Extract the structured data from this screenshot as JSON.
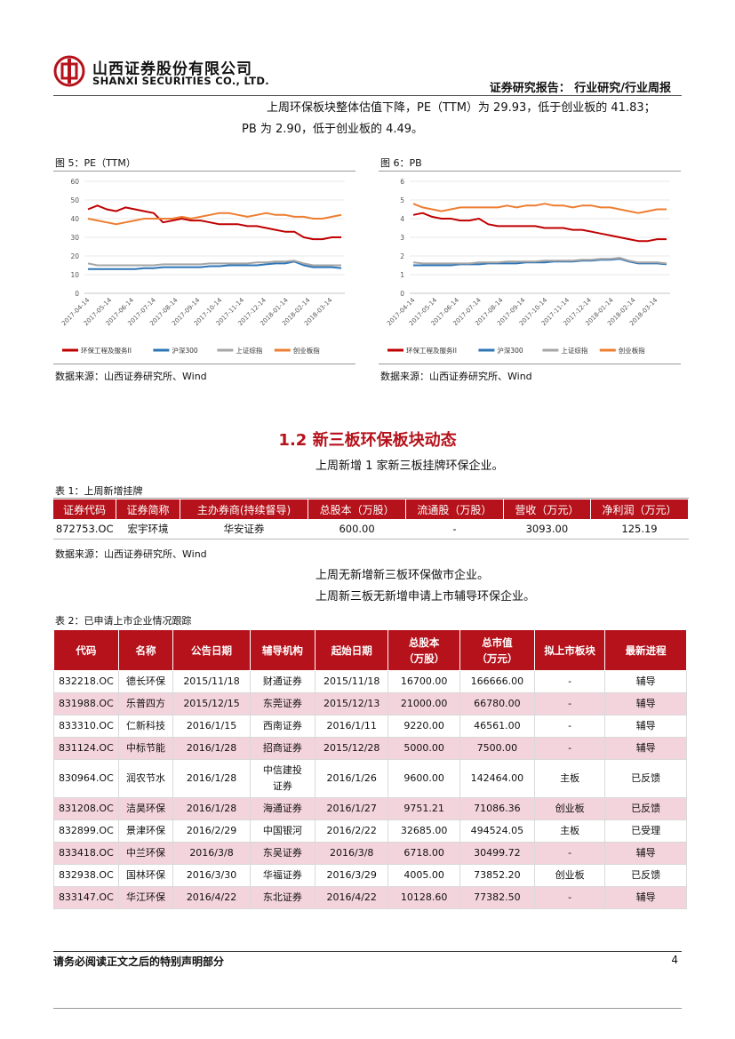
{
  "header": {
    "company_cn": "山西证券股份有限公司",
    "company_en": "SHANXI SECURITIES CO., LTD.",
    "report_type": "证券研究报告：  行业研究/行业周报"
  },
  "intro": {
    "line1": "上周环保板块整体估值下降，PE（TTM）为 29.93，低于创业板的 41.83；",
    "line2": "PB 为 2.90，低于创业板的 4.49。"
  },
  "figure5": {
    "title": "图 5：PE（TTM）",
    "source": "数据来源：山西证券研究所、Wind"
  },
  "figure6": {
    "title": "图 6：PB",
    "source": "数据来源：山西证券研究所、Wind"
  },
  "chart_data": [
    {
      "type": "line",
      "title": "",
      "ylim": [
        0,
        60
      ],
      "yticks": [
        "0",
        "10",
        "20",
        "30",
        "40",
        "50",
        "60"
      ],
      "xticks": [
        "2017-04-14",
        "2017-05-14",
        "2017-06-14",
        "2017-07-14",
        "2017-08-14",
        "2017-09-14",
        "2017-10-14",
        "2017-11-14",
        "2017-12-14",
        "2018-01-14",
        "2018-02-14",
        "2018-03-14"
      ],
      "grid": true,
      "legend_position": "bottom",
      "series": [
        {
          "name": "环保工程及服务II",
          "color": "#c00000",
          "values": [
            45,
            47,
            45,
            44,
            46,
            45,
            44,
            43,
            38,
            39,
            40,
            39,
            39,
            38,
            37,
            37,
            37,
            36,
            36,
            35,
            34,
            33,
            33,
            30,
            29,
            29,
            30,
            30
          ]
        },
        {
          "name": "沪深300",
          "color": "#2e75b6",
          "values": [
            13,
            13,
            13,
            13,
            13,
            13,
            13.5,
            13.5,
            14,
            14,
            14,
            14,
            14,
            14.5,
            14.5,
            15,
            15,
            15,
            15,
            15.5,
            16,
            16,
            17,
            15,
            14,
            14,
            14,
            13.5
          ]
        },
        {
          "name": "上证综指",
          "color": "#a6a6a6",
          "values": [
            16,
            15,
            15,
            15,
            15,
            15,
            15,
            15,
            15.5,
            15.5,
            15.5,
            15.5,
            15.5,
            16,
            16,
            16,
            16,
            16,
            16.5,
            16.5,
            17,
            17,
            17.5,
            16,
            15,
            15,
            15,
            15
          ]
        },
        {
          "name": "创业板指",
          "color": "#ed7d31",
          "values": [
            40,
            39,
            38,
            37,
            38,
            39,
            40,
            40,
            40,
            40,
            41,
            40,
            41,
            42,
            43,
            43,
            42,
            41,
            42,
            43,
            42,
            42,
            41,
            41,
            40,
            40,
            41,
            42
          ]
        }
      ]
    },
    {
      "type": "line",
      "title": "",
      "ylim": [
        0,
        6
      ],
      "yticks": [
        "0",
        "1",
        "2",
        "3",
        "4",
        "5",
        "6"
      ],
      "xticks": [
        "2017-04-14",
        "2017-05-14",
        "2017-06-14",
        "2017-07-14",
        "2017-08-14",
        "2017-09-14",
        "2017-10-14",
        "2017-11-14",
        "2017-12-14",
        "2018-01-14",
        "2018-02-14",
        "2018-03-14"
      ],
      "grid": true,
      "legend_position": "bottom",
      "series": [
        {
          "name": "环保工程及服务II",
          "color": "#c00000",
          "values": [
            4.2,
            4.3,
            4.1,
            4.0,
            4.0,
            3.9,
            3.9,
            4.0,
            3.7,
            3.6,
            3.6,
            3.6,
            3.6,
            3.6,
            3.5,
            3.5,
            3.5,
            3.4,
            3.4,
            3.3,
            3.2,
            3.1,
            3.0,
            2.9,
            2.8,
            2.8,
            2.9,
            2.9
          ]
        },
        {
          "name": "沪深300",
          "color": "#2e75b6",
          "values": [
            1.5,
            1.5,
            1.5,
            1.5,
            1.5,
            1.55,
            1.55,
            1.55,
            1.6,
            1.6,
            1.6,
            1.6,
            1.65,
            1.65,
            1.65,
            1.7,
            1.7,
            1.7,
            1.75,
            1.75,
            1.8,
            1.8,
            1.85,
            1.7,
            1.6,
            1.6,
            1.6,
            1.55
          ]
        },
        {
          "name": "上证综指",
          "color": "#a6a6a6",
          "values": [
            1.65,
            1.6,
            1.6,
            1.6,
            1.6,
            1.6,
            1.6,
            1.65,
            1.65,
            1.65,
            1.7,
            1.7,
            1.7,
            1.7,
            1.75,
            1.75,
            1.75,
            1.75,
            1.8,
            1.8,
            1.85,
            1.85,
            1.9,
            1.75,
            1.65,
            1.65,
            1.65,
            1.6
          ]
        },
        {
          "name": "创业板指",
          "color": "#ed7d31",
          "values": [
            4.8,
            4.6,
            4.5,
            4.4,
            4.5,
            4.6,
            4.6,
            4.6,
            4.6,
            4.6,
            4.7,
            4.6,
            4.7,
            4.7,
            4.8,
            4.7,
            4.7,
            4.6,
            4.7,
            4.7,
            4.6,
            4.6,
            4.5,
            4.4,
            4.3,
            4.4,
            4.5,
            4.5
          ]
        }
      ]
    }
  ],
  "section": {
    "title": "1.2  新三板环保板块动态",
    "line1": "上周新增 1 家新三板挂牌环保企业。",
    "line2": "上周无新增新三板环保做市企业。",
    "line3": "上周新三板无新增申请上市辅导环保企业。"
  },
  "table1": {
    "caption": "表 1：上周新增挂牌",
    "headers": [
      "证券代码",
      "证券简称",
      "主办券商(持续督导)",
      "总股本（万股）",
      "流通股（万股）",
      "营收（万元）",
      "净利润（万元）"
    ],
    "rows": [
      [
        "872753.OC",
        "宏宇环境",
        "华安证券",
        "600.00",
        "-",
        "3093.00",
        "125.19"
      ]
    ],
    "source": "数据来源：山西证券研究所、Wind"
  },
  "table2": {
    "caption": "表 2：已申请上市企业情况跟踪",
    "headers": [
      "代码",
      "名称",
      "公告日期",
      "辅导机构",
      "起始日期",
      "总股本\n（万股）",
      "总市值\n（万元）",
      "拟上市板块",
      "最新进程"
    ],
    "rows": [
      [
        "832218.OC",
        "德长环保",
        "2015/11/18",
        "财通证券",
        "2015/11/18",
        "16700.00",
        "166666.00",
        "-",
        "辅导"
      ],
      [
        "831988.OC",
        "乐普四方",
        "2015/12/15",
        "东莞证券",
        "2015/12/13",
        "21000.00",
        "66780.00",
        "-",
        "辅导"
      ],
      [
        "833310.OC",
        "仁新科技",
        "2016/1/15",
        "西南证券",
        "2016/1/11",
        "9220.00",
        "46561.00",
        "-",
        "辅导"
      ],
      [
        "831124.OC",
        "中标节能",
        "2016/1/28",
        "招商证券",
        "2015/12/28",
        "5000.00",
        "7500.00",
        "-",
        "辅导"
      ],
      [
        "830964.OC",
        "润农节水",
        "2016/1/28",
        "中信建投\n证券",
        "2016/1/26",
        "9600.00",
        "142464.00",
        "主板",
        "已反馈"
      ],
      [
        "831208.OC",
        "洁昊环保",
        "2016/1/28",
        "海通证券",
        "2016/1/27",
        "9751.21",
        "71086.36",
        "创业板",
        "已反馈"
      ],
      [
        "832899.OC",
        "景津环保",
        "2016/2/29",
        "中国银河",
        "2016/2/22",
        "32685.00",
        "494524.05",
        "主板",
        "已受理"
      ],
      [
        "833418.OC",
        "中兰环保",
        "2016/3/8",
        "东吴证券",
        "2016/3/8",
        "6718.00",
        "30499.72",
        "-",
        "辅导"
      ],
      [
        "832938.OC",
        "国林环保",
        "2016/3/30",
        "华福证券",
        "2016/3/29",
        "4005.00",
        "73852.20",
        "创业板",
        "已反馈"
      ],
      [
        "833147.OC",
        "华江环保",
        "2016/4/22",
        "东北证券",
        "2016/4/22",
        "10128.60",
        "77382.50",
        "-",
        "辅导"
      ]
    ]
  },
  "footer": {
    "disclaimer": "请务必阅读正文之后的特别声明部分",
    "page": "4"
  }
}
